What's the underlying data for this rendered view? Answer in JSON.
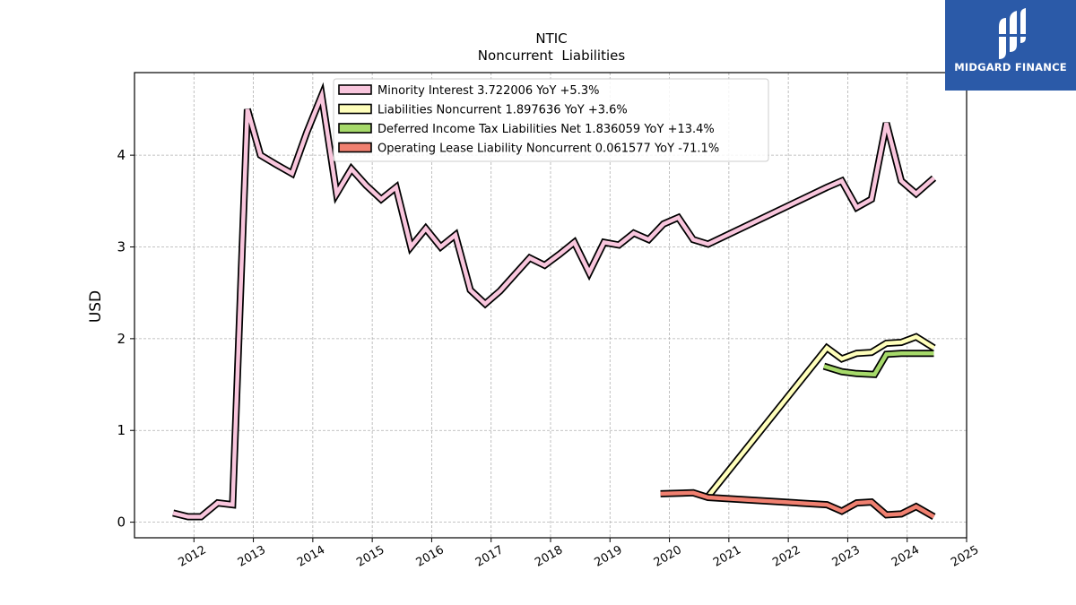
{
  "brand": {
    "name": "MIDGARD FINANCE",
    "bg_color": "#2b5aa8"
  },
  "chart_data": {
    "type": "line",
    "title": "NTIC",
    "subtitle": "Noncurrent  Liabilities",
    "xlabel": "",
    "ylabel": "USD",
    "xlim": [
      2011.0,
      2025.0
    ],
    "ylim": [
      -0.17,
      4.9
    ],
    "x_ticks": [
      "2012",
      "2013",
      "2014",
      "2015",
      "2016",
      "2017",
      "2018",
      "2019",
      "2020",
      "2021",
      "2022",
      "2023",
      "2024",
      "2025"
    ],
    "y_ticks": [
      0,
      1,
      2,
      3,
      4
    ],
    "grid": true,
    "legend_position": "top-center",
    "series": [
      {
        "name": "Minority Interest  3.722006 YoY +5.3%",
        "color": "#f9c6dd",
        "points": [
          [
            2011.65,
            0.1
          ],
          [
            2011.9,
            0.06
          ],
          [
            2012.12,
            0.06
          ],
          [
            2012.4,
            0.21
          ],
          [
            2012.65,
            0.19
          ],
          [
            2012.9,
            4.5
          ],
          [
            2013.12,
            4.0
          ],
          [
            2013.38,
            3.9
          ],
          [
            2013.65,
            3.8
          ],
          [
            2013.9,
            4.25
          ],
          [
            2014.15,
            4.65
          ],
          [
            2014.4,
            3.58
          ],
          [
            2014.65,
            3.85
          ],
          [
            2014.9,
            3.67
          ],
          [
            2015.15,
            3.52
          ],
          [
            2015.4,
            3.65
          ],
          [
            2015.65,
            3.0
          ],
          [
            2015.9,
            3.2
          ],
          [
            2016.15,
            3.0
          ],
          [
            2016.4,
            3.13
          ],
          [
            2016.65,
            2.53
          ],
          [
            2016.9,
            2.38
          ],
          [
            2017.15,
            2.52
          ],
          [
            2017.4,
            2.7
          ],
          [
            2017.65,
            2.88
          ],
          [
            2017.9,
            2.8
          ],
          [
            2018.15,
            2.92
          ],
          [
            2018.4,
            3.05
          ],
          [
            2018.65,
            2.72
          ],
          [
            2018.9,
            3.05
          ],
          [
            2019.15,
            3.02
          ],
          [
            2019.4,
            3.15
          ],
          [
            2019.65,
            3.08
          ],
          [
            2019.9,
            3.25
          ],
          [
            2020.15,
            3.32
          ],
          [
            2020.4,
            3.08
          ],
          [
            2020.65,
            3.03
          ],
          [
            2022.65,
            3.65
          ],
          [
            2022.9,
            3.72
          ],
          [
            2023.15,
            3.43
          ],
          [
            2023.4,
            3.52
          ],
          [
            2023.65,
            4.35
          ],
          [
            2023.9,
            3.72
          ],
          [
            2024.15,
            3.58
          ],
          [
            2024.45,
            3.75
          ]
        ]
      },
      {
        "name": "Liabilities Noncurrent  1.897636 YoY +3.6%",
        "color": "#ffffbb",
        "points": [
          [
            2020.65,
            0.28
          ],
          [
            2022.65,
            1.9
          ],
          [
            2022.9,
            1.78
          ],
          [
            2023.15,
            1.84
          ],
          [
            2023.4,
            1.85
          ],
          [
            2023.65,
            1.95
          ],
          [
            2023.9,
            1.96
          ],
          [
            2024.15,
            2.02
          ],
          [
            2024.45,
            1.9
          ]
        ]
      },
      {
        "name": "Deferred Income Tax Liabilities Net  1.836059 YoY +13.4%",
        "color": "#a6d96a",
        "points": [
          [
            2022.6,
            1.7
          ],
          [
            2022.9,
            1.64
          ],
          [
            2023.15,
            1.62
          ],
          [
            2023.45,
            1.61
          ],
          [
            2023.65,
            1.83
          ],
          [
            2023.9,
            1.84
          ],
          [
            2024.15,
            1.84
          ],
          [
            2024.45,
            1.84
          ]
        ]
      },
      {
        "name": "Operating Lease Liability Noncurrent  0.061577 YoY -71.1%",
        "color": "#f08070",
        "points": [
          [
            2019.85,
            0.31
          ],
          [
            2020.4,
            0.32
          ],
          [
            2020.65,
            0.27
          ],
          [
            2022.65,
            0.19
          ],
          [
            2022.9,
            0.12
          ],
          [
            2023.15,
            0.21
          ],
          [
            2023.4,
            0.22
          ],
          [
            2023.65,
            0.08
          ],
          [
            2023.9,
            0.09
          ],
          [
            2024.15,
            0.17
          ],
          [
            2024.45,
            0.06
          ]
        ]
      }
    ]
  }
}
